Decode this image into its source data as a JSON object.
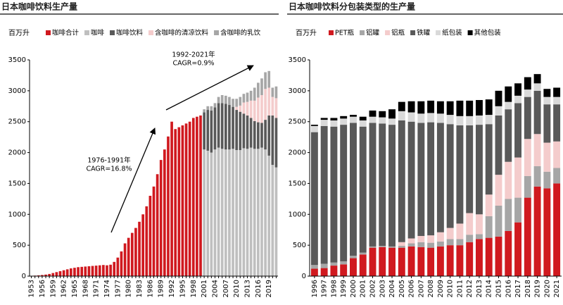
{
  "chart_data": [
    {
      "type": "bar",
      "stacked": true,
      "title": "日本咖啡饮料生产量",
      "y_label": "百万升",
      "categories": [
        "1953",
        null,
        null,
        "1956",
        null,
        null,
        "1959",
        null,
        null,
        "1962",
        null,
        null,
        "1965",
        null,
        null,
        "1968",
        null,
        null,
        "1971",
        null,
        null,
        "1974",
        null,
        null,
        "1977",
        null,
        null,
        "1980",
        null,
        null,
        "1983",
        null,
        null,
        "1986",
        null,
        null,
        "1989",
        null,
        null,
        "1992",
        null,
        null,
        "1995",
        null,
        null,
        "1998",
        null,
        null,
        "2001",
        null,
        null,
        "2004",
        null,
        null,
        "2007",
        null,
        null,
        "2010",
        null,
        null,
        "2013",
        null,
        null,
        "2016",
        null,
        null,
        "2019",
        null,
        null
      ],
      "series": [
        {
          "name": "咖啡合计",
          "color": "#d0191f",
          "values": [
            5,
            8,
            12,
            18,
            25,
            35,
            50,
            65,
            80,
            95,
            110,
            125,
            135,
            145,
            150,
            155,
            160,
            165,
            170,
            175,
            180,
            175,
            185,
            230,
            300,
            400,
            530,
            620,
            700,
            780,
            880,
            1000,
            1130,
            1300,
            1450,
            1650,
            1880,
            2050,
            2260,
            2500,
            2380,
            2410,
            2440,
            2470,
            2500,
            2560,
            2580,
            2600,
            null,
            null,
            null,
            null,
            null,
            null,
            null,
            null,
            null,
            null,
            null,
            null,
            null,
            null,
            null,
            null,
            null,
            null,
            null,
            null,
            null
          ]
        },
        {
          "name": "咖啡",
          "color": "#bfbfbf",
          "values": [
            null,
            null,
            null,
            null,
            null,
            null,
            null,
            null,
            null,
            null,
            null,
            null,
            null,
            null,
            null,
            null,
            null,
            null,
            null,
            null,
            null,
            null,
            null,
            null,
            null,
            null,
            null,
            null,
            null,
            null,
            null,
            null,
            null,
            null,
            null,
            null,
            null,
            null,
            null,
            null,
            null,
            null,
            null,
            null,
            null,
            null,
            null,
            null,
            2050,
            2030,
            2000,
            2050,
            2080,
            2060,
            2050,
            2050,
            2060,
            2040,
            2040,
            2070,
            2060,
            2080,
            2060,
            2060,
            2080,
            2050,
            1950,
            1800,
            1760
          ]
        },
        {
          "name": "咖啡饮料",
          "color": "#595959",
          "values": [
            null,
            null,
            null,
            null,
            null,
            null,
            null,
            null,
            null,
            null,
            null,
            null,
            null,
            null,
            null,
            null,
            null,
            null,
            null,
            null,
            null,
            null,
            null,
            null,
            null,
            null,
            null,
            null,
            null,
            null,
            null,
            null,
            null,
            null,
            null,
            null,
            null,
            null,
            null,
            null,
            null,
            null,
            null,
            null,
            null,
            null,
            null,
            null,
            600,
            660,
            680,
            680,
            720,
            740,
            740,
            720,
            680,
            650,
            620,
            560,
            540,
            480,
            450,
            430,
            400,
            480,
            650,
            800,
            800
          ]
        },
        {
          "name": "含咖啡的清凉饮料",
          "color": "#f4cccc",
          "values": [
            null,
            null,
            null,
            null,
            null,
            null,
            null,
            null,
            null,
            null,
            null,
            null,
            null,
            null,
            null,
            null,
            null,
            null,
            null,
            null,
            null,
            null,
            null,
            null,
            null,
            null,
            null,
            null,
            null,
            null,
            null,
            null,
            null,
            null,
            null,
            null,
            null,
            null,
            null,
            null,
            null,
            null,
            null,
            null,
            null,
            null,
            null,
            null,
            0,
            0,
            0,
            0,
            0,
            0,
            0,
            0,
            0,
            50,
            100,
            180,
            220,
            280,
            330,
            400,
            450,
            500,
            450,
            300,
            320
          ]
        },
        {
          "name": "含咖啡的乳饮",
          "color": "#a6a6a6",
          "values": [
            null,
            null,
            null,
            null,
            null,
            null,
            null,
            null,
            null,
            null,
            null,
            null,
            null,
            null,
            null,
            null,
            null,
            null,
            null,
            null,
            null,
            null,
            null,
            null,
            null,
            null,
            null,
            null,
            null,
            null,
            null,
            null,
            null,
            null,
            null,
            null,
            null,
            null,
            null,
            null,
            null,
            null,
            null,
            null,
            null,
            null,
            null,
            null,
            50,
            60,
            70,
            70,
            100,
            130,
            130,
            130,
            130,
            130,
            140,
            140,
            150,
            160,
            210,
            240,
            270,
            270,
            270,
            150,
            190
          ]
        }
      ],
      "ylim": [
        0,
        3500
      ],
      "yticks": [
        0,
        500,
        1000,
        1500,
        2000,
        2500,
        3000,
        3500
      ],
      "grid": false,
      "annotations": [
        {
          "text": "1992-2021年",
          "color": "#000000"
        },
        {
          "text": "CAGR=0.9%",
          "color": "#d0191f"
        },
        {
          "text": "1976-1991年",
          "color": "#000000"
        },
        {
          "text": "CAGR=16.8%",
          "color": "#d0191f"
        }
      ]
    },
    {
      "type": "bar",
      "stacked": true,
      "title": "日本咖啡饮料分包装类型的生产量",
      "y_label": "百万升",
      "categories": [
        "1996",
        "1997",
        "1998",
        "1999",
        "2000",
        "2001",
        "2002",
        "2003",
        "2004",
        "2005",
        "2006",
        "2007",
        "2008",
        "2009",
        "2010",
        "2011",
        "2012",
        "2013",
        "2014",
        "2015",
        "2016",
        "2017",
        "2018",
        "2019",
        "2020",
        "2021"
      ],
      "series": [
        {
          "name": "PET瓶",
          "color": "#d0191f",
          "values": [
            120,
            130,
            170,
            190,
            290,
            350,
            460,
            470,
            460,
            460,
            480,
            470,
            460,
            480,
            500,
            500,
            550,
            600,
            620,
            640,
            730,
            870,
            1270,
            1450,
            1420,
            1500
          ]
        },
        {
          "name": "铝罐",
          "color": "#a6a6a6",
          "values": [
            60,
            70,
            50,
            50,
            40,
            30,
            20,
            20,
            20,
            30,
            50,
            80,
            80,
            80,
            100,
            100,
            120,
            80,
            350,
            500,
            520,
            400,
            350,
            330,
            270,
            250
          ]
        },
        {
          "name": "铝瓶",
          "color": "#f4cccc",
          "values": [
            0,
            0,
            0,
            0,
            0,
            0,
            0,
            0,
            0,
            60,
            80,
            100,
            120,
            150,
            180,
            250,
            350,
            320,
            350,
            500,
            600,
            650,
            600,
            520,
            470,
            430
          ]
        },
        {
          "name": "铁罐",
          "color": "#595959",
          "values": [
            2150,
            2230,
            2200,
            2210,
            2150,
            2040,
            2000,
            1980,
            1970,
            1970,
            1890,
            1830,
            1830,
            1770,
            1680,
            1590,
            1420,
            1450,
            1140,
            960,
            850,
            880,
            680,
            700,
            620,
            600
          ]
        },
        {
          "name": "纸包装",
          "color": "#d9d9d9",
          "values": [
            100,
            100,
            100,
            100,
            100,
            100,
            100,
            100,
            100,
            150,
            150,
            150,
            150,
            150,
            150,
            150,
            150,
            150,
            150,
            150,
            120,
            120,
            120,
            120,
            120,
            120
          ]
        },
        {
          "name": "其他包装",
          "color": "#000000",
          "values": [
            20,
            30,
            40,
            40,
            30,
            60,
            100,
            100,
            150,
            150,
            180,
            200,
            200,
            200,
            220,
            250,
            250,
            250,
            250,
            250,
            250,
            200,
            200,
            150,
            130,
            150
          ]
        }
      ],
      "ylim": [
        0,
        3500
      ],
      "yticks": [
        0,
        500,
        1000,
        1500,
        2000,
        2500,
        3000,
        3500
      ],
      "grid": false
    }
  ]
}
